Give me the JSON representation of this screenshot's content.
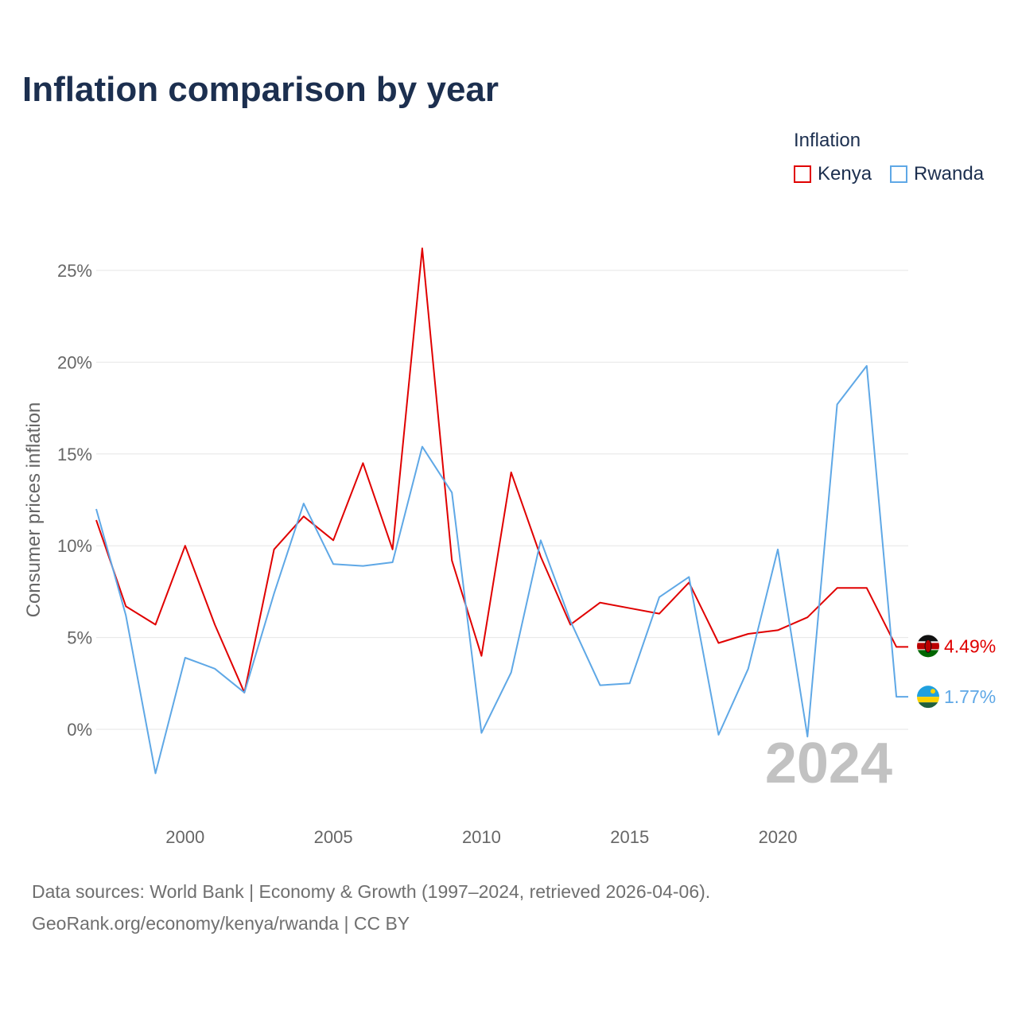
{
  "title": "Inflation comparison by year",
  "legend": {
    "title": "Inflation",
    "items": [
      {
        "label": "Kenya",
        "color": "#e00000"
      },
      {
        "label": "Rwanda",
        "color": "#5fa8e6"
      }
    ]
  },
  "year_watermark": "2024",
  "end_labels": {
    "kenya": "4.49%",
    "rwanda": "1.77%"
  },
  "source": {
    "line1": "Data sources: World Bank | Economy & Growth (1997–2024, retrieved 2026-04-06).",
    "line2": "GeoRank.org/economy/kenya/rwanda | CC BY"
  },
  "chart_data": {
    "type": "line",
    "title": "Inflation comparison by year",
    "xlabel": "",
    "ylabel": "Consumer prices inflation",
    "x": [
      1997,
      1998,
      1999,
      2000,
      2001,
      2002,
      2003,
      2004,
      2005,
      2006,
      2007,
      2008,
      2009,
      2010,
      2011,
      2012,
      2013,
      2014,
      2015,
      2016,
      2017,
      2018,
      2019,
      2020,
      2021,
      2022,
      2023,
      2024
    ],
    "xlim": [
      1997,
      2024.4
    ],
    "xticks": [
      2000,
      2005,
      2010,
      2015,
      2020
    ],
    "xtick_labels": [
      "2000",
      "2005",
      "2010",
      "2015",
      "2020"
    ],
    "ylim": [
      -4,
      27
    ],
    "yticks": [
      0,
      5,
      10,
      15,
      20,
      25
    ],
    "ytick_labels": [
      "0%",
      "5%",
      "10%",
      "15%",
      "20%",
      "25%"
    ],
    "grid": true,
    "legend_position": "top-right",
    "series": [
      {
        "name": "Kenya",
        "color": "#e00000",
        "values": [
          11.4,
          6.7,
          5.7,
          10.0,
          5.7,
          2.0,
          9.8,
          11.6,
          10.3,
          14.5,
          9.8,
          26.2,
          9.2,
          4.0,
          14.0,
          9.4,
          5.7,
          6.9,
          6.6,
          6.3,
          8.0,
          4.7,
          5.2,
          5.4,
          6.1,
          7.7,
          7.7,
          4.49
        ]
      },
      {
        "name": "Rwanda",
        "color": "#5fa8e6",
        "values": [
          12.0,
          6.2,
          -2.4,
          3.9,
          3.3,
          2.0,
          7.4,
          12.3,
          9.0,
          8.9,
          9.1,
          15.4,
          12.9,
          -0.2,
          3.1,
          10.3,
          5.9,
          2.4,
          2.5,
          7.2,
          8.3,
          -0.3,
          3.3,
          9.8,
          -0.4,
          17.7,
          19.8,
          1.77
        ]
      }
    ]
  }
}
